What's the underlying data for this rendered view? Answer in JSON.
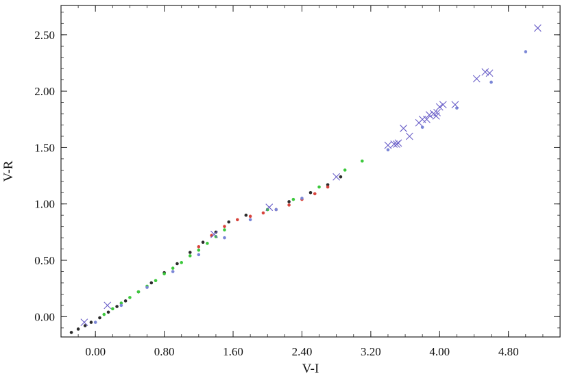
{
  "chart_data": {
    "type": "scatter",
    "title": "",
    "xlabel": "V-I",
    "ylabel": "V-R",
    "xlim": [
      -0.4,
      5.4
    ],
    "ylim": [
      -0.18,
      2.76
    ],
    "x_ticks": [
      "0.00",
      "0.80",
      "1.60",
      "2.40",
      "3.20",
      "4.00",
      "4.80"
    ],
    "y_ticks": [
      "0.00",
      "0.50",
      "1.00",
      "1.50",
      "2.00",
      "2.50"
    ],
    "grid": false,
    "legend": "none",
    "series": [
      {
        "marker": "dot",
        "color": "#2b2b2b",
        "x": [
          -0.28,
          -0.2,
          -0.12,
          -0.05,
          0.05,
          0.15,
          0.25,
          0.35,
          0.5,
          0.65,
          0.8,
          0.95,
          1.1,
          1.25,
          1.4,
          1.55,
          1.75,
          2.0,
          2.25,
          2.5,
          2.7,
          2.85
        ],
        "y": [
          -0.14,
          -0.11,
          -0.08,
          -0.05,
          -0.01,
          0.04,
          0.09,
          0.14,
          0.22,
          0.3,
          0.39,
          0.47,
          0.57,
          0.66,
          0.75,
          0.84,
          0.9,
          0.95,
          1.02,
          1.1,
          1.17,
          1.24
        ]
      },
      {
        "marker": "dot",
        "color": "#3cc83c",
        "x": [
          0.1,
          0.2,
          0.3,
          0.4,
          0.5,
          0.6,
          0.7,
          0.8,
          0.9,
          1.0,
          1.1,
          1.2,
          1.3,
          1.4,
          1.5,
          2.0,
          2.3,
          2.6,
          2.9,
          3.1
        ],
        "y": [
          0.02,
          0.07,
          0.12,
          0.17,
          0.22,
          0.27,
          0.32,
          0.38,
          0.43,
          0.48,
          0.54,
          0.59,
          0.65,
          0.71,
          0.77,
          0.95,
          1.04,
          1.15,
          1.3,
          1.38
        ]
      },
      {
        "marker": "dot",
        "color": "#d8443c",
        "x": [
          1.2,
          1.35,
          1.5,
          1.65,
          1.8,
          1.95,
          2.1,
          2.25,
          2.4,
          2.55,
          2.7
        ],
        "y": [
          0.62,
          0.72,
          0.8,
          0.86,
          0.89,
          0.92,
          0.95,
          0.99,
          1.04,
          1.09,
          1.15
        ]
      },
      {
        "marker": "dot",
        "color": "#7a86d6",
        "x": [
          0.0,
          0.3,
          0.6,
          0.9,
          1.2,
          1.5,
          1.8,
          2.1,
          2.4,
          3.4,
          3.8,
          4.2,
          4.6,
          5.0
        ],
        "y": [
          -0.05,
          0.1,
          0.26,
          0.4,
          0.55,
          0.7,
          0.86,
          0.95,
          1.05,
          1.48,
          1.68,
          1.85,
          2.08,
          2.35
        ]
      },
      {
        "marker": "x",
        "color": "#6a5fc8",
        "x": [
          -0.13,
          0.14,
          1.38,
          2.02,
          2.8,
          3.4,
          3.47,
          3.5,
          3.52,
          3.58,
          3.65,
          3.76,
          3.8,
          3.85,
          3.88,
          3.93,
          3.96,
          3.97,
          4.0,
          4.04,
          4.18,
          4.43,
          4.53,
          4.58,
          5.14
        ],
        "y": [
          -0.05,
          0.1,
          0.73,
          0.97,
          1.24,
          1.52,
          1.53,
          1.53,
          1.54,
          1.67,
          1.6,
          1.72,
          1.75,
          1.75,
          1.79,
          1.8,
          1.78,
          1.81,
          1.86,
          1.88,
          1.88,
          2.11,
          2.17,
          2.16,
          2.56
        ]
      }
    ]
  }
}
